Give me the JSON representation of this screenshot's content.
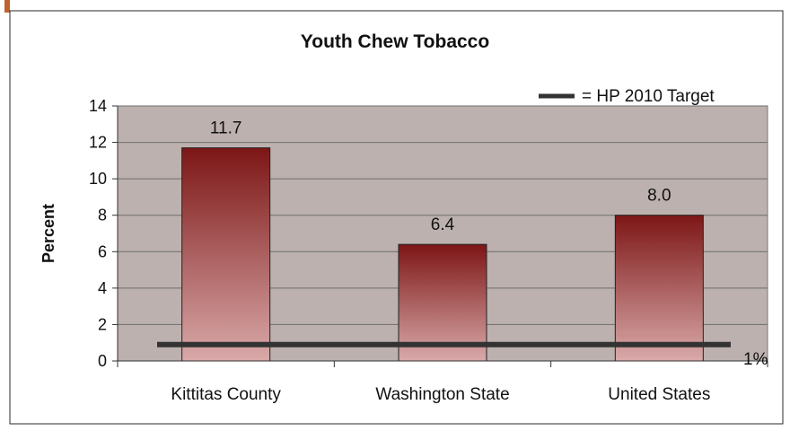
{
  "chart_data": {
    "type": "bar",
    "title": "Youth Chew Tobacco",
    "ylabel": "Percent",
    "xlabel": "",
    "categories": [
      "Kittitas County",
      "Washington State",
      "United States"
    ],
    "values": [
      11.7,
      6.4,
      8.0
    ],
    "value_labels": [
      "11.7",
      "6.4",
      "8.0"
    ],
    "ylim": [
      0,
      14
    ],
    "yticks": [
      0,
      2,
      4,
      6,
      8,
      10,
      12,
      14
    ],
    "grid": true,
    "target": {
      "value": 0.9,
      "label": "1%",
      "legend_label": "= HP 2010 Target"
    },
    "legend_position": "top-right",
    "colors": {
      "plot_background": "#bcb1ae",
      "bar_top": "#7d1616",
      "bar_bottom": "#d9a9a9",
      "target_line": "#333333",
      "accent_bar": "#c0622c"
    }
  }
}
